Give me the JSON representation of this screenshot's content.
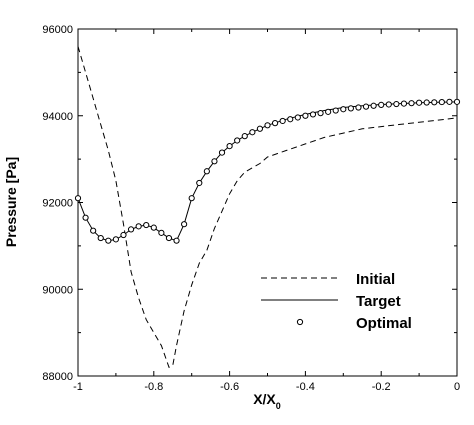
{
  "chart_data": {
    "type": "line",
    "xlabel_main": "X/X",
    "xlabel_sub": "0",
    "ylabel": "Pressure [Pa]",
    "xlim": [
      -1,
      0
    ],
    "ylim": [
      88000,
      96000
    ],
    "xticks": [
      -1,
      -0.8,
      -0.6,
      -0.4,
      -0.2,
      0
    ],
    "xtick_labels": [
      "-1",
      "-0.8",
      "-0.6",
      "-0.4",
      "-0.2",
      "0"
    ],
    "yticks": [
      88000,
      90000,
      92000,
      94000,
      96000
    ],
    "ytick_labels": [
      "88000",
      "90000",
      "92000",
      "94000",
      "96000"
    ],
    "grid": false,
    "legend_position": "lower-right",
    "series": [
      {
        "name": "Initial",
        "style": "dashed",
        "x": [
          -1,
          -0.97,
          -0.94,
          -0.92,
          -0.9,
          -0.88,
          -0.86,
          -0.84,
          -0.82,
          -0.8,
          -0.78,
          -0.76,
          -0.75,
          -0.74,
          -0.72,
          -0.7,
          -0.68,
          -0.66,
          -0.64,
          -0.62,
          -0.6,
          -0.58,
          -0.56,
          -0.54,
          -0.52,
          -0.5,
          -0.45,
          -0.4,
          -0.35,
          -0.3,
          -0.25,
          -0.2,
          -0.15,
          -0.1,
          -0.05,
          0
        ],
        "y": [
          95600,
          94700,
          93800,
          93200,
          92500,
          91500,
          90400,
          89800,
          89300,
          89000,
          88700,
          88200,
          88250,
          88700,
          89500,
          90100,
          90600,
          90900,
          91400,
          91800,
          92200,
          92500,
          92700,
          92800,
          92900,
          93050,
          93200,
          93350,
          93500,
          93600,
          93700,
          93750,
          93800,
          93850,
          93900,
          93950
        ]
      },
      {
        "name": "Target",
        "style": "solid",
        "x": [
          -1,
          -0.98,
          -0.96,
          -0.94,
          -0.92,
          -0.9,
          -0.88,
          -0.86,
          -0.84,
          -0.82,
          -0.8,
          -0.78,
          -0.76,
          -0.74,
          -0.72,
          -0.7,
          -0.68,
          -0.66,
          -0.64,
          -0.62,
          -0.6,
          -0.58,
          -0.56,
          -0.54,
          -0.52,
          -0.5,
          -0.45,
          -0.4,
          -0.35,
          -0.3,
          -0.25,
          -0.2,
          -0.15,
          -0.1,
          -0.05,
          0
        ],
        "y": [
          92100,
          91650,
          91350,
          91180,
          91120,
          91150,
          91250,
          91380,
          91450,
          91480,
          91420,
          91300,
          91180,
          91120,
          91500,
          92100,
          92450,
          92720,
          92950,
          93150,
          93300,
          93430,
          93530,
          93620,
          93700,
          93780,
          93920,
          94030,
          94120,
          94190,
          94230,
          94260,
          94280,
          94300,
          94310,
          94320
        ]
      },
      {
        "name": "Optimal",
        "style": "markers",
        "x": [
          -1,
          -0.98,
          -0.96,
          -0.94,
          -0.92,
          -0.9,
          -0.88,
          -0.86,
          -0.84,
          -0.82,
          -0.8,
          -0.78,
          -0.76,
          -0.74,
          -0.72,
          -0.7,
          -0.68,
          -0.66,
          -0.64,
          -0.62,
          -0.6,
          -0.58,
          -0.56,
          -0.54,
          -0.52,
          -0.5,
          -0.48,
          -0.46,
          -0.44,
          -0.42,
          -0.4,
          -0.38,
          -0.36,
          -0.34,
          -0.32,
          -0.3,
          -0.28,
          -0.26,
          -0.24,
          -0.22,
          -0.2,
          -0.18,
          -0.16,
          -0.14,
          -0.12,
          -0.1,
          -0.08,
          -0.06,
          -0.04,
          -0.02,
          0
        ],
        "y": [
          92100,
          91650,
          91350,
          91180,
          91120,
          91150,
          91250,
          91380,
          91450,
          91480,
          91420,
          91300,
          91180,
          91120,
          91500,
          92100,
          92450,
          92720,
          92950,
          93150,
          93300,
          93430,
          93530,
          93620,
          93700,
          93780,
          93830,
          93880,
          93920,
          93960,
          94000,
          94030,
          94060,
          94090,
          94120,
          94150,
          94170,
          94190,
          94210,
          94230,
          94250,
          94260,
          94270,
          94280,
          94290,
          94300,
          94305,
          94310,
          94315,
          94320,
          94320
        ]
      }
    ]
  }
}
